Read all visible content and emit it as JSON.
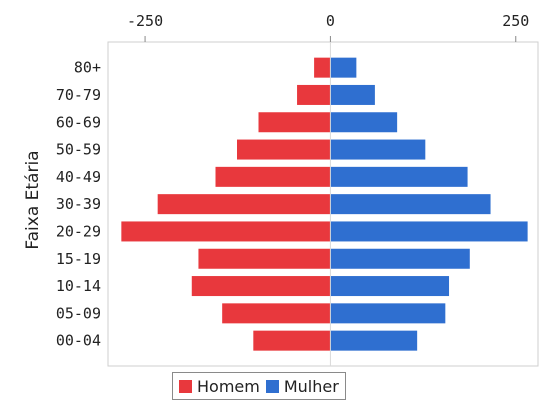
{
  "chart_data": {
    "type": "bar",
    "orientation": "horizontal",
    "ylabel": "Faixa Etária",
    "categories": [
      "80+",
      "70-79",
      "60-69",
      "50-59",
      "40-49",
      "30-39",
      "20-29",
      "15-19",
      "10-14",
      "05-09",
      "00-04"
    ],
    "series": [
      {
        "name": "Homem",
        "color": "#e8383d",
        "values": [
          -22,
          -45,
          -97,
          -126,
          -155,
          -233,
          -282,
          -178,
          -187,
          -146,
          -104
        ]
      },
      {
        "name": "Mulher",
        "color": "#2f6fd0",
        "values": [
          35,
          60,
          90,
          128,
          185,
          216,
          266,
          188,
          160,
          155,
          117
        ]
      }
    ],
    "xlim": [
      -300,
      280
    ],
    "xticks": [
      -250,
      0,
      250
    ],
    "xtick_labels": [
      "-250",
      "0",
      "250"
    ],
    "x_axis_position": "top",
    "legend_position": "bottom",
    "grid": false
  }
}
